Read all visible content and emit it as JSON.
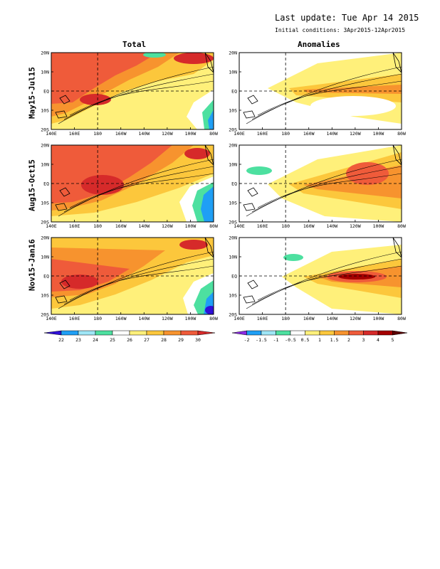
{
  "header": {
    "last_update": "Last update: Tue Apr 14 2015",
    "initial_conditions": "Initial conditions: 3Apr2015-12Apr2015"
  },
  "columns": {
    "total_title": "Total",
    "anomalies_title": "Anomalies"
  },
  "rows": [
    {
      "label": "May15-Jul15"
    },
    {
      "label": "Aug15-Oct15"
    },
    {
      "label": "Nov15-Jan16"
    }
  ],
  "axes": {
    "lon_ticks": [
      "140E",
      "160E",
      "180",
      "160W",
      "140W",
      "120W",
      "100W",
      "80W"
    ],
    "lat_ticks": [
      "20N",
      "10N",
      "EQ",
      "10S",
      "20S"
    ]
  },
  "colorbars": {
    "total": {
      "labels": [
        "22",
        "23",
        "24",
        "25",
        "26",
        "27",
        "28",
        "29",
        "30"
      ],
      "colors": [
        "#3010d8",
        "#1f9ff5",
        "#9fe6f6",
        "#4de0a0",
        "#ffffff",
        "#fff07a",
        "#fcc73c",
        "#f7932e",
        "#ef5b3a",
        "#d62a2a"
      ]
    },
    "anomalies": {
      "labels": [
        "-2",
        "-1.5",
        "-1",
        "-0.5",
        "0.5",
        "1",
        "1.5",
        "2",
        "3",
        "4",
        "5"
      ],
      "colors": [
        "#8a2be2",
        "#1f9ff5",
        "#9fe6f6",
        "#4de0a0",
        "#ffffff",
        "#fff07a",
        "#fcc73c",
        "#f7932e",
        "#ef5b3a",
        "#d62a2a",
        "#a40000",
        "#5a0000"
      ]
    }
  }
}
